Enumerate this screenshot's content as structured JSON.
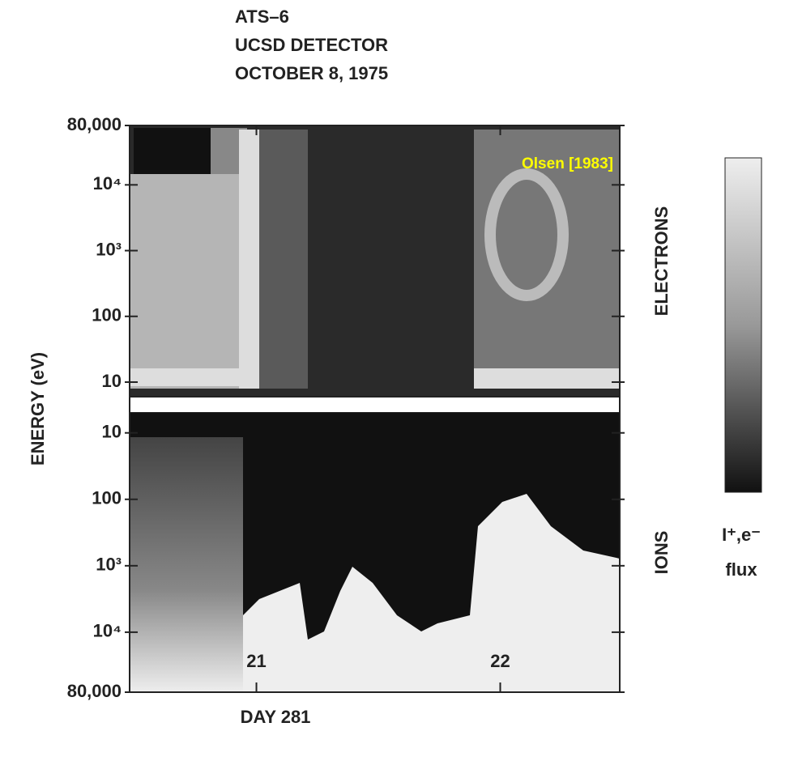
{
  "chart_data": {
    "type": "spectrogram",
    "title": [
      "ATS–6",
      "UCSD DETECTOR",
      "OCTOBER 8, 1975"
    ],
    "xlabel": "DAY 281",
    "ylabel": "ENERGY (eV)",
    "annotation": "Olsen [1983]",
    "colorbar_label": [
      "I⁺,e⁻",
      "flux"
    ],
    "xlim": [
      20.48,
      22.49
    ],
    "xticks": [
      21,
      22
    ],
    "panels": [
      {
        "name": "ELECTRONS",
        "log": true,
        "ylim": [
          80000,
          6
        ],
        "yticks": [
          {
            "value": 80000,
            "label": "80,000"
          },
          {
            "value": 10000,
            "label": "10⁴"
          },
          {
            "value": 1000,
            "label": "10³"
          },
          100,
          10
        ]
      },
      {
        "name": "IONS",
        "log": true,
        "ylim": [
          5,
          80000
        ],
        "yticks": [
          10,
          100,
          {
            "value": 1000,
            "label": "10³"
          },
          {
            "value": 10000,
            "label": "10⁴"
          },
          {
            "value": 80000,
            "label": "80,000"
          }
        ]
      }
    ]
  }
}
